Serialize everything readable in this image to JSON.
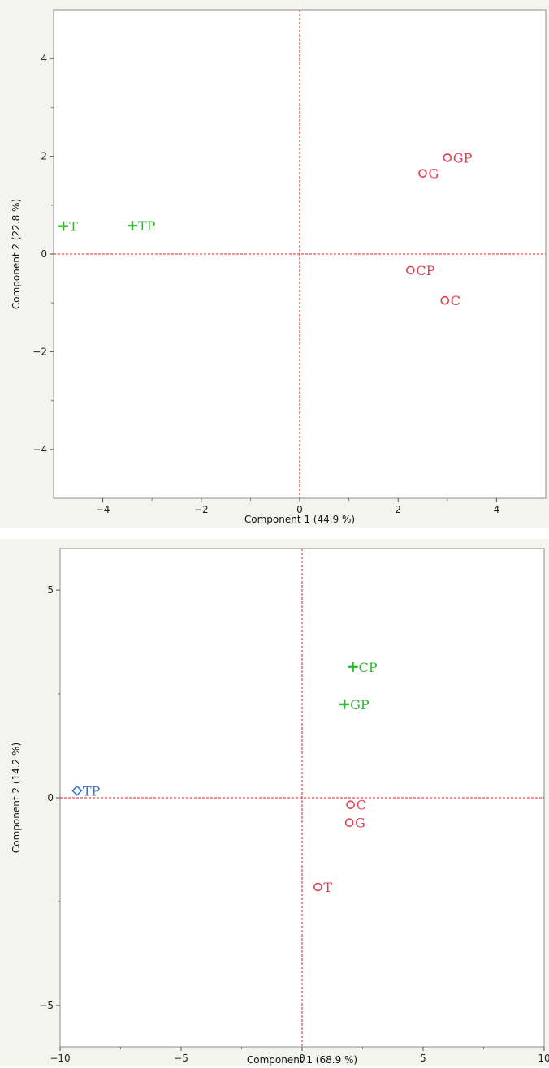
{
  "colors": {
    "red": "#e53d4f",
    "green": "#2db82d",
    "blue": "#3a73d6",
    "refline": "#e01b24",
    "frame": "#8c8c8c",
    "plot_bg": "#ffffff",
    "panel_bg": "#f4f4ef"
  },
  "chart_data": [
    {
      "type": "scatter",
      "title": "",
      "xlabel": "Component 1  (44.9 %)",
      "ylabel": "Component 2  (22.8 %)",
      "xlim": [
        -5,
        5
      ],
      "ylim": [
        -5,
        5
      ],
      "xticks": [
        -4,
        -2,
        0,
        2,
        4
      ],
      "yticks": [
        -4,
        -2,
        0,
        2,
        4
      ],
      "xtick_labels": [
        "−4",
        "−2",
        "0",
        "2",
        "4"
      ],
      "ytick_labels": [
        "−4",
        "−2",
        "0",
        "2",
        "4"
      ],
      "reference_lines": {
        "x": 0,
        "y": 0,
        "style": "dashed"
      },
      "grid": false,
      "points": [
        {
          "label": "GP",
          "x": 3.0,
          "y": 1.97,
          "marker": "circle",
          "color": "red"
        },
        {
          "label": "G",
          "x": 2.5,
          "y": 1.65,
          "marker": "circle",
          "color": "red"
        },
        {
          "label": "CP",
          "x": 2.25,
          "y": -0.33,
          "marker": "circle",
          "color": "red"
        },
        {
          "label": "C",
          "x": 2.95,
          "y": -0.95,
          "marker": "circle",
          "color": "red"
        },
        {
          "label": "T",
          "x": -4.8,
          "y": 0.57,
          "marker": "plus",
          "color": "green"
        },
        {
          "label": "TP",
          "x": -3.4,
          "y": 0.58,
          "marker": "plus",
          "color": "green"
        }
      ]
    },
    {
      "type": "scatter",
      "title": "",
      "xlabel": "Component 1  (68.9 %)",
      "ylabel": "Component 2  (14.2 %)",
      "xlim": [
        -10,
        10
      ],
      "ylim": [
        -6,
        6
      ],
      "xticks": [
        -10,
        -5,
        0,
        5,
        10
      ],
      "yticks": [
        -5,
        0,
        5
      ],
      "xtick_labels": [
        "−10",
        "−5",
        "0",
        "5",
        "10"
      ],
      "ytick_labels": [
        "−5",
        "0",
        "5"
      ],
      "reference_lines": {
        "x": 0,
        "y": 0,
        "style": "dashed"
      },
      "grid": false,
      "points": [
        {
          "label": "CP",
          "x": 2.1,
          "y": 3.15,
          "marker": "plus",
          "color": "green"
        },
        {
          "label": "GP",
          "x": 1.75,
          "y": 2.25,
          "marker": "plus",
          "color": "green"
        },
        {
          "label": "TP",
          "x": -9.3,
          "y": 0.17,
          "marker": "diamond",
          "color": "blue"
        },
        {
          "label": "C",
          "x": 2.0,
          "y": -0.17,
          "marker": "circle",
          "color": "red"
        },
        {
          "label": "G",
          "x": 1.95,
          "y": -0.6,
          "marker": "circle",
          "color": "red"
        },
        {
          "label": "T",
          "x": 0.65,
          "y": -2.15,
          "marker": "circle",
          "color": "red"
        }
      ]
    }
  ]
}
